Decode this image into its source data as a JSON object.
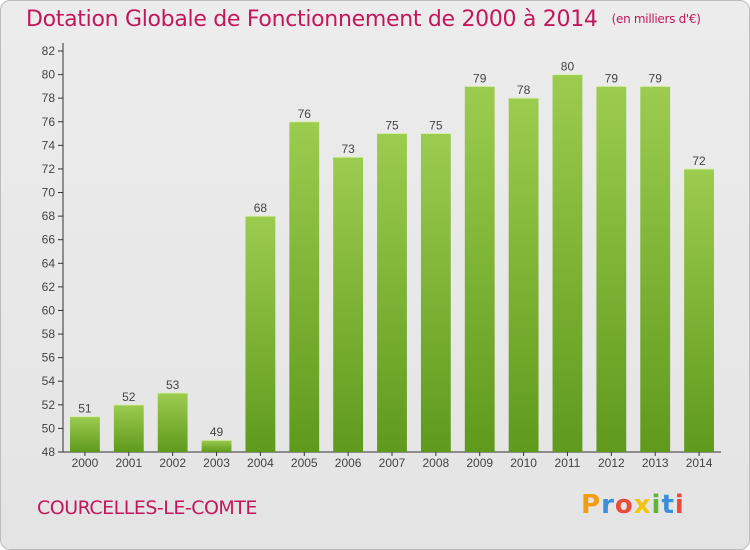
{
  "chart_data": {
    "type": "bar",
    "title": "Dotation Globale de Fonctionnement de 2000 à 2014",
    "unit_label": "(en milliers d'€)",
    "categories": [
      "2000",
      "2001",
      "2002",
      "2003",
      "2004",
      "2005",
      "2006",
      "2007",
      "2008",
      "2009",
      "2010",
      "2011",
      "2012",
      "2013",
      "2014"
    ],
    "values": [
      51,
      52,
      53,
      49,
      68,
      76,
      73,
      75,
      75,
      79,
      78,
      80,
      79,
      79,
      72
    ],
    "ylim": [
      48,
      82
    ],
    "yticks": [
      48,
      50,
      52,
      54,
      56,
      58,
      60,
      62,
      64,
      66,
      68,
      70,
      72,
      74,
      76,
      78,
      80,
      82
    ],
    "xlabel": "",
    "ylabel": "",
    "grid": false,
    "bar_color_top": "#9ccc4f",
    "bar_color_bottom": "#5f9a1c"
  },
  "footer": {
    "commune": "COURCELLES-LE-COMTE",
    "logo_letters": [
      "P",
      "r",
      "o",
      "x",
      "i",
      "t",
      "i"
    ],
    "logo_colors": [
      "#f39c12",
      "#3a8fd8",
      "#e74c3c",
      "#f1c40f",
      "#5fb43a",
      "#3a8fd8",
      "#e74c3c"
    ]
  },
  "colors": {
    "title": "#c2185b",
    "axis": "#333333",
    "label": "#444444"
  }
}
